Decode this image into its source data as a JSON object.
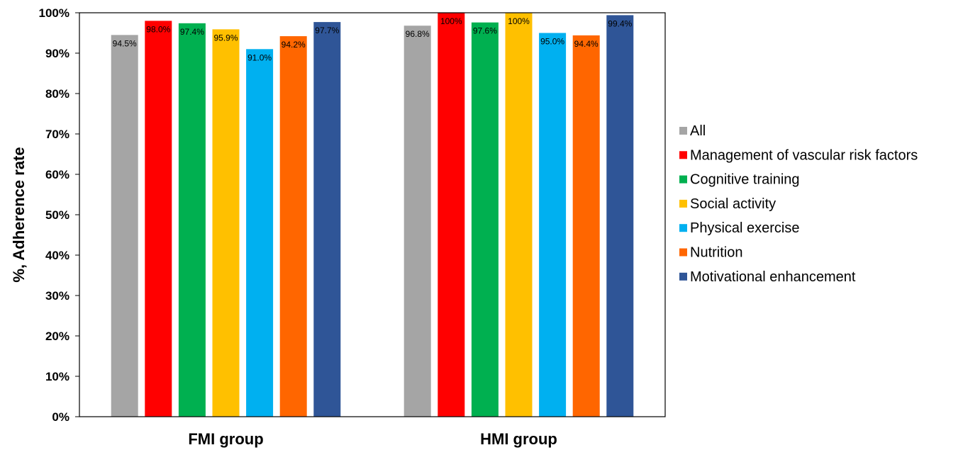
{
  "chart_data": {
    "type": "bar",
    "title": "",
    "xlabel": "",
    "ylabel": "%, Adherence rate",
    "ylim": [
      0,
      100
    ],
    "yticks": [
      "0%",
      "10%",
      "20%",
      "30%",
      "40%",
      "50%",
      "60%",
      "70%",
      "80%",
      "90%",
      "100%"
    ],
    "grid": false,
    "legend_position": "right",
    "categories": [
      "FMI group",
      "HMI group"
    ],
    "series": [
      {
        "name": "All",
        "color": "#A5A5A5",
        "values": [
          94.5,
          96.8
        ],
        "labels": [
          "94.5%",
          "96.8%"
        ]
      },
      {
        "name": "Management of vascular risk factors",
        "color": "#FF0000",
        "values": [
          98.0,
          100
        ],
        "labels": [
          "98.0%",
          "100%"
        ]
      },
      {
        "name": "Cognitive training",
        "color": "#00B050",
        "values": [
          97.4,
          97.6
        ],
        "labels": [
          "97.4%",
          "97.6%"
        ]
      },
      {
        "name": "Social activity",
        "color": "#FFC000",
        "values": [
          95.9,
          100
        ],
        "labels": [
          "95.9%",
          "100%"
        ]
      },
      {
        "name": "Physical exercise",
        "color": "#00B0F0",
        "values": [
          91.0,
          95.0
        ],
        "labels": [
          "91.0%",
          "95.0%"
        ]
      },
      {
        "name": "Nutrition",
        "color": "#FF6600",
        "values": [
          94.2,
          94.4
        ],
        "labels": [
          "94.2%",
          "94.4%"
        ]
      },
      {
        "name": "Motivational enhancement",
        "color": "#2F5597",
        "values": [
          97.7,
          99.4
        ],
        "labels": [
          "97.7%",
          "99.4%"
        ]
      }
    ]
  }
}
